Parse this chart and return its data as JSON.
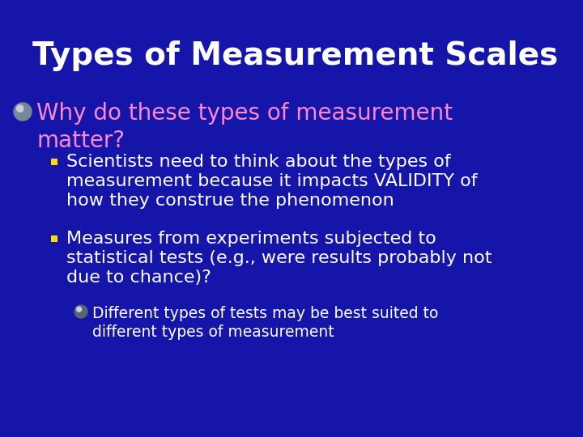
{
  "title": "Types of Measurement Scales",
  "title_color": "#FFFFFF",
  "title_fontsize": 28,
  "background_color": "#1515AA",
  "bullet1_text": "Why do these types of measurement\nmatter?",
  "bullet1_color": "#FF88CC",
  "bullet1_fontsize": 20,
  "sub_bullet1_line1": "Scientists need to think about the types of",
  "sub_bullet1_line2": "measurement because it impacts VALIDITY of",
  "sub_bullet1_line3": "how they construe the phenomenon",
  "sub_bullet2_line1": "Measures from experiments subjected to",
  "sub_bullet2_line2": "statistical tests (e.g., were results probably not",
  "sub_bullet2_line3": "due to chance)?",
  "sub_bullet_color": "#FFFFFF",
  "sub_bullet_fontsize": 16,
  "sub_sub_line1": "Different types of tests may be best suited to",
  "sub_sub_line2": "different types of measurement",
  "sub_sub_bullet_color": "#FFFFFF",
  "sub_sub_bullet_fontsize": 13.5
}
